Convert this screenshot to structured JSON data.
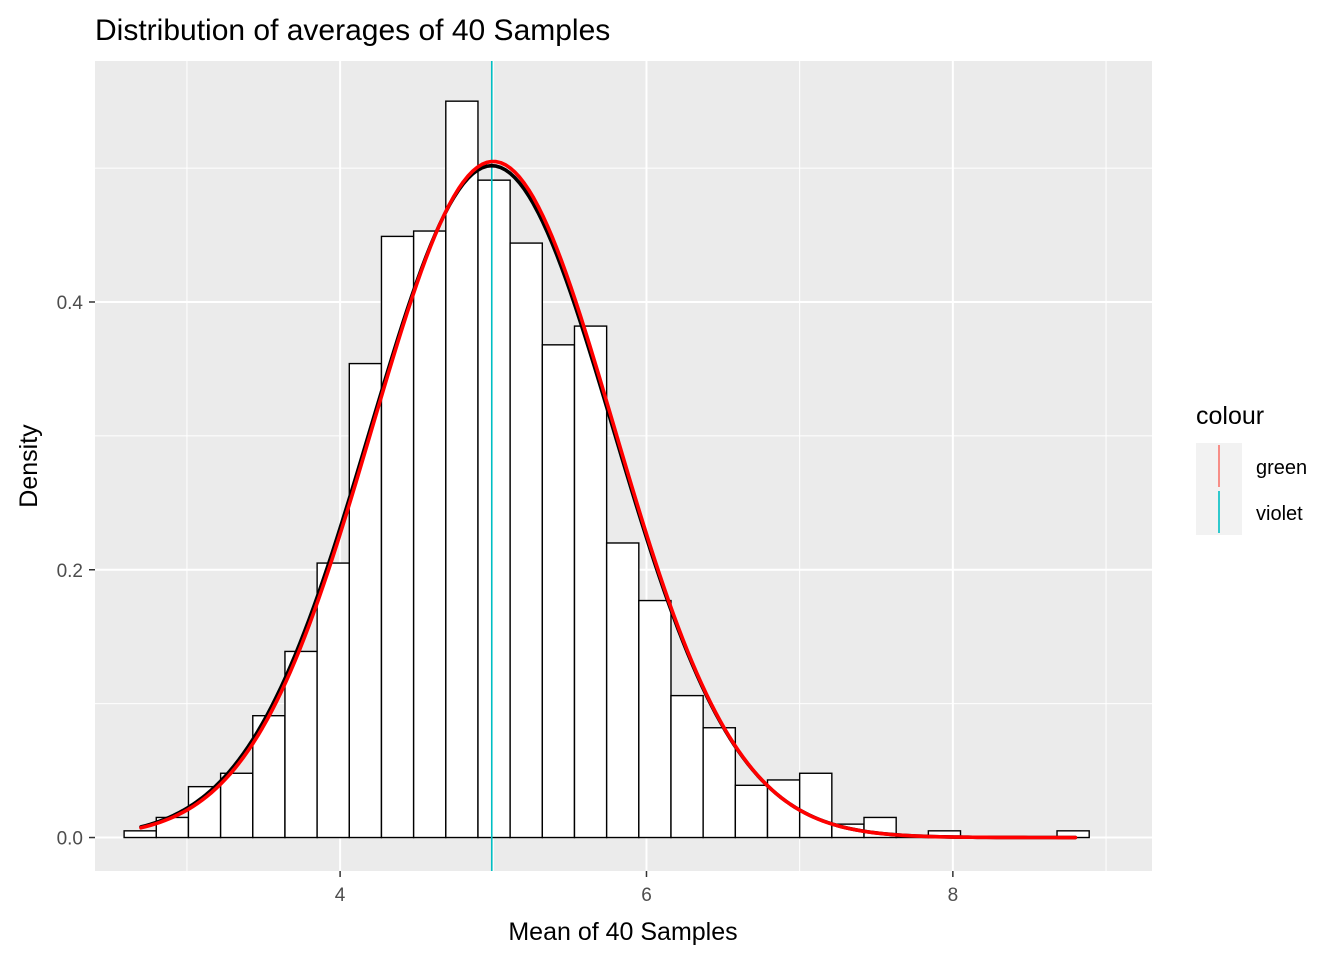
{
  "chart_data": {
    "type": "histogram",
    "title": "Distribution of averages of 40 Samples",
    "xlabel": "Mean of 40 Samples",
    "ylabel": "Density",
    "xlim": [
      2.4,
      9.3
    ],
    "ylim": [
      -0.025,
      0.58
    ],
    "x_ticks": [
      {
        "value": 4,
        "label": "4"
      },
      {
        "value": 6,
        "label": "6"
      },
      {
        "value": 8,
        "label": "8"
      }
    ],
    "y_ticks": [
      {
        "value": 0.0,
        "label": "0.0"
      },
      {
        "value": 0.2,
        "label": "0.2"
      },
      {
        "value": 0.4,
        "label": "0.4"
      }
    ],
    "x_minor_ticks": [
      3,
      5,
      7,
      9
    ],
    "y_minor_ticks": [
      0.1,
      0.3,
      0.5
    ],
    "bin_width": 0.21,
    "bins": [
      {
        "x_start": 2.59,
        "density": 0.005
      },
      {
        "x_start": 2.8,
        "density": 0.015
      },
      {
        "x_start": 3.01,
        "density": 0.038
      },
      {
        "x_start": 3.22,
        "density": 0.048
      },
      {
        "x_start": 3.43,
        "density": 0.091
      },
      {
        "x_start": 3.64,
        "density": 0.139
      },
      {
        "x_start": 3.85,
        "density": 0.205
      },
      {
        "x_start": 4.06,
        "density": 0.354
      },
      {
        "x_start": 4.27,
        "density": 0.449
      },
      {
        "x_start": 4.48,
        "density": 0.453
      },
      {
        "x_start": 4.69,
        "density": 0.55
      },
      {
        "x_start": 4.9,
        "density": 0.491
      },
      {
        "x_start": 5.11,
        "density": 0.444
      },
      {
        "x_start": 5.32,
        "density": 0.368
      },
      {
        "x_start": 5.53,
        "density": 0.382
      },
      {
        "x_start": 5.74,
        "density": 0.22
      },
      {
        "x_start": 5.95,
        "density": 0.177
      },
      {
        "x_start": 6.16,
        "density": 0.106
      },
      {
        "x_start": 6.37,
        "density": 0.082
      },
      {
        "x_start": 6.58,
        "density": 0.039
      },
      {
        "x_start": 6.79,
        "density": 0.043
      },
      {
        "x_start": 7.0,
        "density": 0.048
      },
      {
        "x_start": 7.21,
        "density": 0.01
      },
      {
        "x_start": 7.42,
        "density": 0.015
      },
      {
        "x_start": 7.63,
        "density": 0.001
      },
      {
        "x_start": 7.84,
        "density": 0.005
      },
      {
        "x_start": 8.05,
        "density": 0.0
      },
      {
        "x_start": 8.26,
        "density": 0.0
      },
      {
        "x_start": 8.47,
        "density": 0.0
      },
      {
        "x_start": 8.68,
        "density": 0.005
      }
    ],
    "density_curves": [
      {
        "color": "#000000",
        "mean": 4.99,
        "sd": 0.795,
        "x_range": [
          2.7,
          8.8
        ]
      },
      {
        "color": "#ff0000",
        "mean": 5.0,
        "sd": 0.79,
        "x_range": [
          2.7,
          8.8
        ]
      }
    ],
    "vertical_lines": [
      {
        "x": 4.99,
        "color": "#00bfc4"
      }
    ],
    "legend": {
      "title": "colour",
      "position": "right",
      "entries": [
        {
          "label": "green",
          "color": "#f8766d"
        },
        {
          "label": "violet",
          "color": "#00bfc4"
        }
      ]
    },
    "grid": true,
    "panel_background": "#ebebeb",
    "bar_fill": "#ffffff",
    "bar_stroke": "#000000"
  }
}
